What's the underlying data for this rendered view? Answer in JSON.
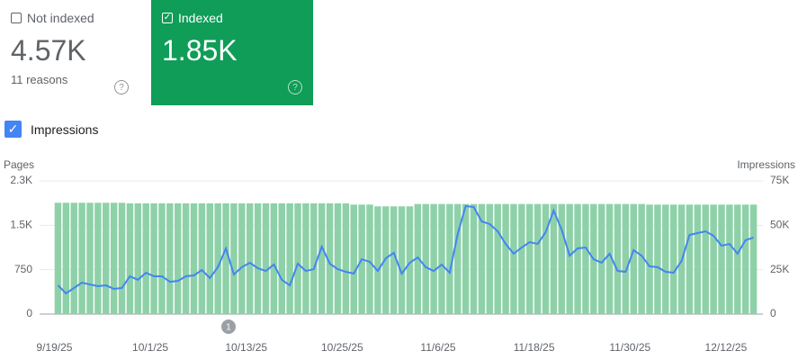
{
  "cards": [
    {
      "title": "Not indexed",
      "value": "4.57K",
      "subtitle": "11 reasons",
      "color": "#ffffff"
    },
    {
      "title": "Indexed",
      "value": "1.85K",
      "color": "#0f9d58"
    }
  ],
  "chart_data": {
    "type": "bar",
    "ylabel": "Pages",
    "y2label": "Impressions",
    "categories": [
      "9/19/25",
      null,
      null,
      null,
      null,
      null,
      null,
      null,
      null,
      null,
      null,
      null,
      "10/1/25",
      null,
      null,
      null,
      null,
      null,
      null,
      null,
      null,
      null,
      null,
      null,
      "10/13/25",
      null,
      null,
      null,
      null,
      null,
      null,
      null,
      null,
      null,
      null,
      null,
      "10/25/25",
      null,
      null,
      null,
      null,
      null,
      null,
      null,
      null,
      null,
      null,
      null,
      "11/6/25",
      null,
      null,
      null,
      null,
      null,
      null,
      null,
      null,
      null,
      null,
      null,
      "11/18/25",
      null,
      null,
      null,
      null,
      null,
      null,
      null,
      null,
      null,
      null,
      null,
      "11/30/25",
      null,
      null,
      null,
      null,
      null,
      null,
      null,
      null,
      null,
      null,
      null,
      "12/12/25",
      null,
      null,
      null
    ],
    "series": [
      {
        "type": "bar",
        "color": "#8ed1a8",
        "values": [
          1880,
          1880,
          1880,
          1880,
          1880,
          1880,
          1880,
          1880,
          1880,
          1870,
          1870,
          1870,
          1870,
          1870,
          1870,
          1870,
          1870,
          1870,
          1870,
          1870,
          1870,
          1870,
          1870,
          1870,
          1870,
          1870,
          1870,
          1870,
          1870,
          1870,
          1870,
          1870,
          1870,
          1870,
          1870,
          1870,
          1870,
          1850,
          1850,
          1850,
          1820,
          1820,
          1820,
          1820,
          1820,
          1860,
          1860,
          1860,
          1860,
          1860,
          1860,
          1860,
          1860,
          1860,
          1860,
          1860,
          1860,
          1860,
          1860,
          1860,
          1860,
          1860,
          1860,
          1860,
          1860,
          1860,
          1860,
          1860,
          1860,
          1860,
          1860,
          1860,
          1860,
          1860,
          1850,
          1850,
          1850,
          1850,
          1850,
          1850,
          1850,
          1850,
          1850,
          1850,
          1850,
          1850,
          1850,
          1850
        ]
      },
      {
        "name": "Impressions",
        "type": "line",
        "axis": "y2",
        "color": "#4285f4",
        "values": [
          16200,
          11700,
          14700,
          17700,
          16700,
          15700,
          16200,
          14200,
          14700,
          21300,
          19300,
          23300,
          21300,
          21300,
          18200,
          18700,
          21300,
          21800,
          24800,
          20300,
          26400,
          37000,
          22300,
          26400,
          28900,
          25800,
          24300,
          27900,
          19300,
          16200,
          28400,
          24300,
          25300,
          38000,
          28400,
          25300,
          23800,
          22800,
          30900,
          29400,
          24300,
          31400,
          34500,
          22800,
          28900,
          31900,
          26400,
          24300,
          27900,
          23300,
          45100,
          60800,
          60300,
          52200,
          50700,
          46600,
          39500,
          34000,
          37500,
          40500,
          39500,
          46100,
          58300,
          47600,
          32900,
          37000,
          37500,
          30900,
          28900,
          34000,
          24300,
          23800,
          36000,
          32900,
          26900,
          26400,
          23800,
          23300,
          29900,
          44600,
          45600,
          46600,
          44100,
          38500,
          39500,
          34000,
          41600,
          43100
        ]
      }
    ],
    "ylim": [
      0,
      2250
    ],
    "yticks": [
      0,
      750,
      {
        "value": 1500,
        "label": "1.5K"
      },
      {
        "value": 2250,
        "label": "2.3K"
      }
    ],
    "y2lim": [
      0,
      75000
    ],
    "y2ticks": [
      0,
      {
        "value": 25000,
        "label": "25K"
      },
      {
        "value": 50000,
        "label": "50K"
      },
      {
        "value": 75000,
        "label": "75K"
      }
    ],
    "grid": true,
    "annotations": [
      {
        "label": "1"
      }
    ]
  }
}
